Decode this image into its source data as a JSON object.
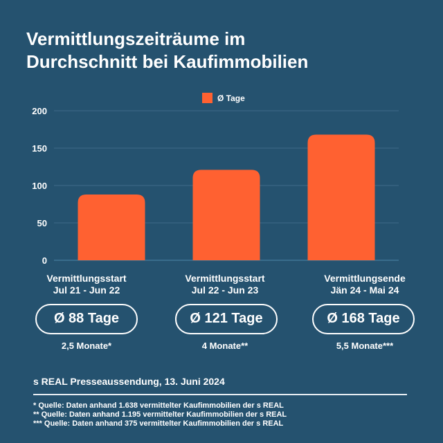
{
  "title_line1": "Vermittlungszeiträume im",
  "title_line2": "Durchschnitt bei Kaufimmobilien",
  "chart_data": {
    "type": "bar",
    "categories": [
      [
        "Vermittlungsstart",
        "Jul 21 - Jun 22"
      ],
      [
        "Vermittlungsstart",
        "Jul 22 - Jun 23"
      ],
      [
        "Vermittlungsende",
        "Jän 24 - Mai 24"
      ]
    ],
    "series": [
      {
        "name": "Ø Tage",
        "values": [
          88,
          121,
          168
        ],
        "color": "#ff6131"
      }
    ],
    "ylim": [
      0,
      200
    ],
    "yticks": [
      "0",
      "50",
      "100",
      "150",
      "200"
    ],
    "grid": true,
    "legend": "top-center"
  },
  "pills": [
    "Ø 88 Tage",
    "Ø 121 Tage",
    "Ø 168 Tage"
  ],
  "months": [
    "2,5 Monate*",
    "4 Monate**",
    "5,5 Monate***"
  ],
  "source": "s REAL Presseaussendung, 13. Juni 2024",
  "notes": [
    "* Quelle: Daten anhand 1.638 vermittelter Kaufimmobilien der s REAL",
    "** Quelle: Daten anhand 1.195 vermittelter Kaufimmobilien der s REAL",
    "*** Quelle: Daten anhand 375  vermittelter Kaufimmobilien der s REAL"
  ],
  "colors": {
    "background": "#25526f",
    "bar": "#ff6131",
    "text": "#ffffff"
  }
}
